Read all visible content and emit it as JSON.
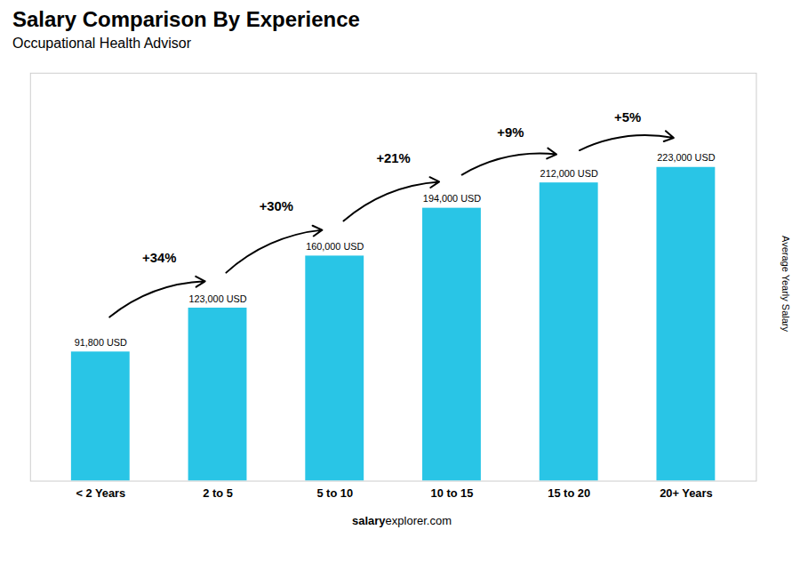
{
  "chart_data": {
    "type": "bar",
    "title": "Salary Comparison By Experience",
    "subtitle": "Occupational Health Advisor",
    "ylabel": "Average Yearly Salary",
    "footer": [
      "salary",
      "explorer.com"
    ],
    "categories": [
      "< 2 Years",
      "2 to 5",
      "5 to 10",
      "10 to 15",
      "15 to 20",
      "20+ Years"
    ],
    "values": [
      91800,
      123000,
      160000,
      194000,
      212000,
      223000
    ],
    "value_labels": [
      "91,800 USD",
      "123,000 USD",
      "160,000 USD",
      "194,000 USD",
      "212,000 USD",
      "223,000 USD"
    ],
    "data_labels": true,
    "annotations": [
      {
        "text": "+34%",
        "from": "< 2 Years",
        "to": "2 to 5"
      },
      {
        "text": "+30%",
        "from": "2 to 5",
        "to": "5 to 10"
      },
      {
        "text": "+21%",
        "from": "5 to 10",
        "to": "10 to 15"
      },
      {
        "text": "+9%",
        "from": "10 to 15",
        "to": "15 to 20"
      },
      {
        "text": "+5%",
        "from": "15 to 20",
        "to": "20+ Years"
      }
    ],
    "color": "#29C5E6",
    "ylim": [
      0,
      290000
    ],
    "tick_labels": "x",
    "grid": false
  }
}
